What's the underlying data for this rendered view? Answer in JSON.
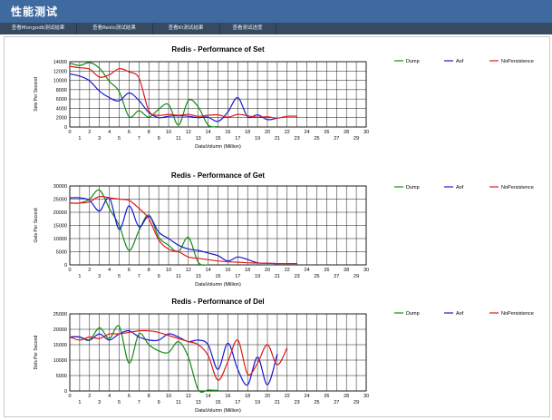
{
  "page": {
    "title": "性能测试"
  },
  "tabs": [
    {
      "label": "查看Mongodb测试结果"
    },
    {
      "label": "查看Redis测试结果"
    },
    {
      "label": "查看Kt测试结果"
    },
    {
      "label": "查看测试进度"
    }
  ],
  "chart_data": [
    {
      "type": "line",
      "title": "Redis - Performance of Set",
      "xlabel": "DataVolumn (Million)",
      "ylabel": "Sets Per Second",
      "xlim": [
        0,
        30
      ],
      "ylim": [
        0,
        14000
      ],
      "yticks": [
        0,
        2000,
        4000,
        6000,
        8000,
        10000,
        12000,
        14000
      ],
      "grid": true,
      "legend_position": "right",
      "series": [
        {
          "name": "Dump",
          "color": "#148c14",
          "x": [
            0,
            1,
            2,
            3,
            4,
            5,
            6,
            7,
            8,
            9,
            10,
            11,
            12,
            13,
            14,
            15
          ],
          "y": [
            13700,
            13200,
            13800,
            12600,
            9800,
            7600,
            2200,
            3500,
            2100,
            3800,
            4800,
            400,
            5700,
            4300,
            400,
            100
          ]
        },
        {
          "name": "Aof",
          "color": "#1a1ad4",
          "x": [
            0,
            1,
            2,
            3,
            4,
            5,
            6,
            7,
            8,
            9,
            10,
            11,
            12,
            13,
            14,
            15,
            16,
            17,
            18,
            19,
            20,
            21
          ],
          "y": [
            11400,
            10900,
            9900,
            7700,
            6300,
            5600,
            7300,
            5700,
            3100,
            2000,
            2300,
            2400,
            2300,
            2000,
            2100,
            1200,
            3200,
            6300,
            2200,
            2600,
            1600,
            1900
          ]
        },
        {
          "name": "NoPersistence",
          "color": "#e01a1a",
          "x": [
            0,
            1,
            2,
            3,
            4,
            5,
            6,
            7,
            8,
            9,
            10,
            11,
            12,
            13,
            14,
            15,
            16,
            17,
            18,
            19,
            20,
            21,
            22,
            23
          ],
          "y": [
            13000,
            12700,
            12400,
            10700,
            11200,
            12500,
            11800,
            10500,
            3500,
            2500,
            2700,
            2500,
            2700,
            2300,
            2500,
            2600,
            2100,
            2700,
            2400,
            2100,
            2200,
            1900,
            2300,
            2300
          ]
        }
      ]
    },
    {
      "type": "line",
      "title": "Redis - Performance of Get",
      "xlabel": "DataVolumn (Million)",
      "ylabel": "Gets Per Second",
      "xlim": [
        0,
        30
      ],
      "ylim": [
        0,
        30000
      ],
      "yticks": [
        0,
        5000,
        10000,
        15000,
        20000,
        25000,
        30000
      ],
      "grid": true,
      "legend_position": "right",
      "series": [
        {
          "name": "Dump",
          "color": "#148c14",
          "x": [
            0,
            1,
            2,
            3,
            4,
            5,
            6,
            7,
            8,
            9,
            10,
            11,
            12,
            13,
            14
          ],
          "y": [
            23500,
            23500,
            25000,
            28500,
            21500,
            15000,
            5500,
            13000,
            19000,
            10500,
            7500,
            5000,
            10500,
            1000,
            0
          ]
        },
        {
          "name": "Aof",
          "color": "#1a1ad4",
          "x": [
            0,
            1,
            2,
            3,
            4,
            5,
            6,
            7,
            8,
            9,
            10,
            11,
            12,
            13,
            14,
            15,
            16,
            17,
            18,
            19,
            20,
            21
          ],
          "y": [
            25500,
            25500,
            24500,
            20500,
            25500,
            13500,
            22500,
            14500,
            18500,
            12500,
            10000,
            7500,
            6000,
            5500,
            4500,
            3500,
            1500,
            3000,
            2000,
            800,
            600,
            500
          ]
        },
        {
          "name": "NoPersistence",
          "color": "#e01a1a",
          "x": [
            0,
            1,
            2,
            3,
            4,
            5,
            6,
            7,
            8,
            9,
            10,
            11,
            12,
            13,
            14,
            15,
            16,
            17,
            18,
            19,
            20,
            21,
            22,
            23
          ],
          "y": [
            23500,
            23500,
            24000,
            26000,
            25500,
            25000,
            24500,
            21500,
            17500,
            9500,
            6000,
            5000,
            3000,
            2500,
            2000,
            1500,
            1200,
            1000,
            800,
            700,
            600,
            500,
            500,
            500
          ]
        }
      ]
    },
    {
      "type": "line",
      "title": "Redis - Performance of Del",
      "xlabel": "DataVolumn (Million)",
      "ylabel": "Dels Per Second",
      "xlim": [
        0,
        30
      ],
      "ylim": [
        0,
        25000
      ],
      "yticks": [
        0,
        5000,
        10000,
        15000,
        20000,
        25000
      ],
      "grid": true,
      "legend_position": "right",
      "series": [
        {
          "name": "Dump",
          "color": "#148c14",
          "x": [
            0,
            1,
            2,
            3,
            4,
            5,
            6,
            7,
            8,
            9,
            10,
            11,
            12,
            13,
            14,
            15
          ],
          "y": [
            17500,
            17500,
            16500,
            20500,
            17000,
            21000,
            9000,
            18500,
            15000,
            13000,
            12500,
            16000,
            11000,
            400,
            300,
            200
          ]
        },
        {
          "name": "Aof",
          "color": "#1a1ad4",
          "x": [
            0,
            1,
            2,
            3,
            4,
            5,
            6,
            7,
            8,
            9,
            10,
            11,
            12,
            13,
            14,
            15,
            16,
            17,
            18,
            19,
            20,
            21
          ],
          "y": [
            17500,
            17500,
            16500,
            18500,
            16500,
            18500,
            19500,
            17500,
            16500,
            16500,
            18500,
            17500,
            16000,
            16500,
            15000,
            7000,
            15500,
            7000,
            2000,
            11000,
            2000,
            12000
          ]
        },
        {
          "name": "NoPersistence",
          "color": "#e01a1a",
          "x": [
            0,
            1,
            2,
            3,
            4,
            5,
            6,
            7,
            8,
            9,
            10,
            11,
            12,
            13,
            14,
            15,
            16,
            17,
            18,
            19,
            20,
            21,
            22
          ],
          "y": [
            17500,
            16500,
            17500,
            17000,
            18500,
            18500,
            19000,
            19500,
            19500,
            19000,
            18000,
            17000,
            16000,
            15000,
            11500,
            3500,
            9500,
            16500,
            5500,
            9000,
            15000,
            8500,
            14000
          ]
        }
      ]
    }
  ]
}
